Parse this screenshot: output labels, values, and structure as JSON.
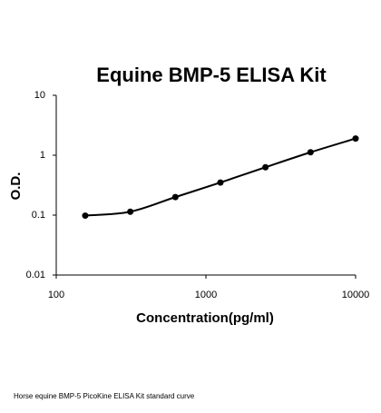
{
  "chart_data": {
    "type": "scatter",
    "title": "Equine BMP-5 ELISA Kit",
    "xlabel": "Concentration(pg/ml)",
    "ylabel": "O.D.",
    "caption": "Horse equine BMP-5 PicoKine ELISA Kit standard curve",
    "x": [
      156.25,
      312.5,
      625,
      1250,
      2500,
      5000,
      10000
    ],
    "values": [
      0.098,
      0.114,
      0.2,
      0.35,
      0.63,
      1.12,
      1.9
    ],
    "color": "#000000",
    "fit_line": true,
    "xlim": [
      100,
      10000
    ],
    "xticks": [
      100,
      1000,
      10000
    ],
    "xlog": true,
    "ylim": [
      0.01,
      10
    ],
    "yticks": [
      0.01,
      0.1,
      1,
      10
    ],
    "ylog": true
  }
}
